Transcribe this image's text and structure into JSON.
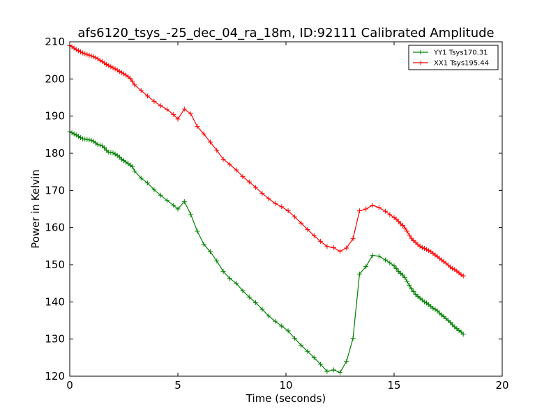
{
  "chart_data": {
    "type": "line",
    "title": "afs6120_tsys_-25_dec_04_ra_18m, ID:92111 Calibrated Amplitude",
    "xlabel": "Time (seconds)",
    "ylabel": "Power in Kelvin",
    "xlim": [
      0,
      20
    ],
    "ylim": [
      120,
      210
    ],
    "xticks": [
      "0",
      "5",
      "10",
      "15",
      "20"
    ],
    "yticks": [
      "120",
      "130",
      "140",
      "150",
      "160",
      "170",
      "180",
      "190",
      "200",
      "210"
    ],
    "grid": false,
    "legend_position": "top-right",
    "series": [
      {
        "name": "YY1 Tsys170.31",
        "color": "#008000",
        "marker": "+",
        "points": [
          [
            0.0,
            185.8
          ],
          [
            0.1,
            185.5
          ],
          [
            0.2,
            185.2
          ],
          [
            0.3,
            184.9
          ],
          [
            0.4,
            184.6
          ],
          [
            0.5,
            184.2
          ],
          [
            0.6,
            183.9
          ],
          [
            0.7,
            183.8
          ],
          [
            0.8,
            183.7
          ],
          [
            0.9,
            183.6
          ],
          [
            1.0,
            183.5
          ],
          [
            1.1,
            183.2
          ],
          [
            1.2,
            182.8
          ],
          [
            1.3,
            182.3
          ],
          [
            1.4,
            182.2
          ],
          [
            1.5,
            182.0
          ],
          [
            1.6,
            181.5
          ],
          [
            1.7,
            180.8
          ],
          [
            1.8,
            180.3
          ],
          [
            1.9,
            180.2
          ],
          [
            2.0,
            180.1
          ],
          [
            2.1,
            179.8
          ],
          [
            2.2,
            179.4
          ],
          [
            2.3,
            179.0
          ],
          [
            2.4,
            178.4
          ],
          [
            2.5,
            178.0
          ],
          [
            2.6,
            177.6
          ],
          [
            2.7,
            177.2
          ],
          [
            2.8,
            176.8
          ],
          [
            2.9,
            176.4
          ],
          [
            3.0,
            175.2
          ],
          [
            3.3,
            173.3
          ],
          [
            3.6,
            172.0
          ],
          [
            3.9,
            170.2
          ],
          [
            4.2,
            168.7
          ],
          [
            4.5,
            167.3
          ],
          [
            4.8,
            166.0
          ],
          [
            5.0,
            165.0
          ],
          [
            5.3,
            167.0
          ],
          [
            5.6,
            163.5
          ],
          [
            5.9,
            159.0
          ],
          [
            6.2,
            155.5
          ],
          [
            6.5,
            153.5
          ],
          [
            6.8,
            151.0
          ],
          [
            7.1,
            148.2
          ],
          [
            7.4,
            146.3
          ],
          [
            7.7,
            145.0
          ],
          [
            8.0,
            143.0
          ],
          [
            8.3,
            141.3
          ],
          [
            8.6,
            139.8
          ],
          [
            8.9,
            138.0
          ],
          [
            9.2,
            136.2
          ],
          [
            9.5,
            134.8
          ],
          [
            9.8,
            133.5
          ],
          [
            10.1,
            132.2
          ],
          [
            10.4,
            130.2
          ],
          [
            10.7,
            128.3
          ],
          [
            11.0,
            126.7
          ],
          [
            11.3,
            125.0
          ],
          [
            11.6,
            123.2
          ],
          [
            11.9,
            121.3
          ],
          [
            12.2,
            121.7
          ],
          [
            12.5,
            121.0
          ],
          [
            12.8,
            124.0
          ],
          [
            13.1,
            130.2
          ],
          [
            13.4,
            147.5
          ],
          [
            13.7,
            149.5
          ],
          [
            14.0,
            152.5
          ],
          [
            14.3,
            152.3
          ],
          [
            14.6,
            151.3
          ],
          [
            14.8,
            150.5
          ],
          [
            15.0,
            149.7
          ],
          [
            15.1,
            149.0
          ],
          [
            15.2,
            148.2
          ],
          [
            15.3,
            147.7
          ],
          [
            15.4,
            147.2
          ],
          [
            15.5,
            146.5
          ],
          [
            15.6,
            145.5
          ],
          [
            15.7,
            144.5
          ],
          [
            15.8,
            143.5
          ],
          [
            15.9,
            142.8
          ],
          [
            16.0,
            142.0
          ],
          [
            16.1,
            141.5
          ],
          [
            16.2,
            141.0
          ],
          [
            16.3,
            140.5
          ],
          [
            16.4,
            140.0
          ],
          [
            16.5,
            139.7
          ],
          [
            16.6,
            139.3
          ],
          [
            16.7,
            138.8
          ],
          [
            16.8,
            138.3
          ],
          [
            16.9,
            138.0
          ],
          [
            17.0,
            137.6
          ],
          [
            17.1,
            137.0
          ],
          [
            17.2,
            136.5
          ],
          [
            17.3,
            136.0
          ],
          [
            17.4,
            135.5
          ],
          [
            17.5,
            135.0
          ],
          [
            17.6,
            134.5
          ],
          [
            17.7,
            133.8
          ],
          [
            17.8,
            133.3
          ],
          [
            17.9,
            132.8
          ],
          [
            18.0,
            132.3
          ],
          [
            18.1,
            131.9
          ],
          [
            18.2,
            131.3
          ]
        ]
      },
      {
        "name": "XX1 Tsys195.44",
        "color": "#ff0000",
        "marker": "+",
        "points": [
          [
            0.0,
            209.0
          ],
          [
            0.1,
            208.7
          ],
          [
            0.2,
            208.3
          ],
          [
            0.3,
            207.9
          ],
          [
            0.4,
            207.6
          ],
          [
            0.5,
            207.3
          ],
          [
            0.6,
            207.0
          ],
          [
            0.7,
            206.8
          ],
          [
            0.8,
            206.6
          ],
          [
            0.9,
            206.4
          ],
          [
            1.0,
            206.2
          ],
          [
            1.1,
            206.0
          ],
          [
            1.2,
            205.7
          ],
          [
            1.3,
            205.4
          ],
          [
            1.4,
            205.0
          ],
          [
            1.5,
            204.7
          ],
          [
            1.6,
            204.3
          ],
          [
            1.7,
            203.9
          ],
          [
            1.8,
            203.6
          ],
          [
            1.9,
            203.3
          ],
          [
            2.0,
            203.0
          ],
          [
            2.1,
            202.7
          ],
          [
            2.2,
            202.4
          ],
          [
            2.3,
            202.0
          ],
          [
            2.4,
            201.7
          ],
          [
            2.5,
            201.4
          ],
          [
            2.6,
            201.0
          ],
          [
            2.7,
            200.6
          ],
          [
            2.8,
            200.1
          ],
          [
            2.9,
            199.3
          ],
          [
            3.0,
            198.4
          ],
          [
            3.3,
            196.9
          ],
          [
            3.6,
            195.4
          ],
          [
            3.9,
            194.0
          ],
          [
            4.2,
            192.8
          ],
          [
            4.5,
            191.8
          ],
          [
            4.8,
            190.4
          ],
          [
            5.0,
            189.2
          ],
          [
            5.3,
            191.9
          ],
          [
            5.6,
            190.6
          ],
          [
            5.9,
            187.2
          ],
          [
            6.2,
            185.2
          ],
          [
            6.5,
            183.0
          ],
          [
            6.8,
            180.8
          ],
          [
            7.1,
            178.4
          ],
          [
            7.4,
            177.0
          ],
          [
            7.7,
            175.5
          ],
          [
            8.0,
            173.7
          ],
          [
            8.3,
            172.3
          ],
          [
            8.6,
            170.8
          ],
          [
            8.9,
            169.2
          ],
          [
            9.2,
            167.8
          ],
          [
            9.5,
            166.5
          ],
          [
            9.8,
            165.6
          ],
          [
            10.1,
            164.5
          ],
          [
            10.4,
            162.9
          ],
          [
            10.7,
            161.2
          ],
          [
            11.0,
            159.5
          ],
          [
            11.3,
            157.8
          ],
          [
            11.6,
            156.3
          ],
          [
            11.9,
            154.9
          ],
          [
            12.2,
            154.6
          ],
          [
            12.5,
            153.6
          ],
          [
            12.8,
            154.5
          ],
          [
            13.1,
            157.0
          ],
          [
            13.4,
            164.5
          ],
          [
            13.7,
            165.0
          ],
          [
            14.0,
            166.0
          ],
          [
            14.3,
            165.4
          ],
          [
            14.6,
            164.4
          ],
          [
            14.8,
            163.5
          ],
          [
            15.0,
            162.7
          ],
          [
            15.1,
            162.3
          ],
          [
            15.2,
            161.7
          ],
          [
            15.3,
            161.0
          ],
          [
            15.4,
            160.6
          ],
          [
            15.5,
            159.9
          ],
          [
            15.6,
            159.0
          ],
          [
            15.7,
            158.0
          ],
          [
            15.8,
            157.1
          ],
          [
            15.9,
            156.5
          ],
          [
            16.0,
            156.0
          ],
          [
            16.1,
            155.4
          ],
          [
            16.2,
            155.0
          ],
          [
            16.3,
            154.6
          ],
          [
            16.4,
            154.4
          ],
          [
            16.5,
            154.1
          ],
          [
            16.6,
            153.8
          ],
          [
            16.7,
            153.5
          ],
          [
            16.8,
            153.1
          ],
          [
            16.9,
            152.6
          ],
          [
            17.0,
            152.2
          ],
          [
            17.1,
            151.7
          ],
          [
            17.2,
            151.3
          ],
          [
            17.3,
            150.8
          ],
          [
            17.4,
            150.4
          ],
          [
            17.5,
            149.9
          ],
          [
            17.6,
            149.4
          ],
          [
            17.7,
            149.0
          ],
          [
            17.8,
            148.7
          ],
          [
            17.9,
            148.3
          ],
          [
            18.0,
            147.8
          ],
          [
            18.1,
            147.3
          ],
          [
            18.2,
            147.0
          ]
        ]
      }
    ]
  }
}
